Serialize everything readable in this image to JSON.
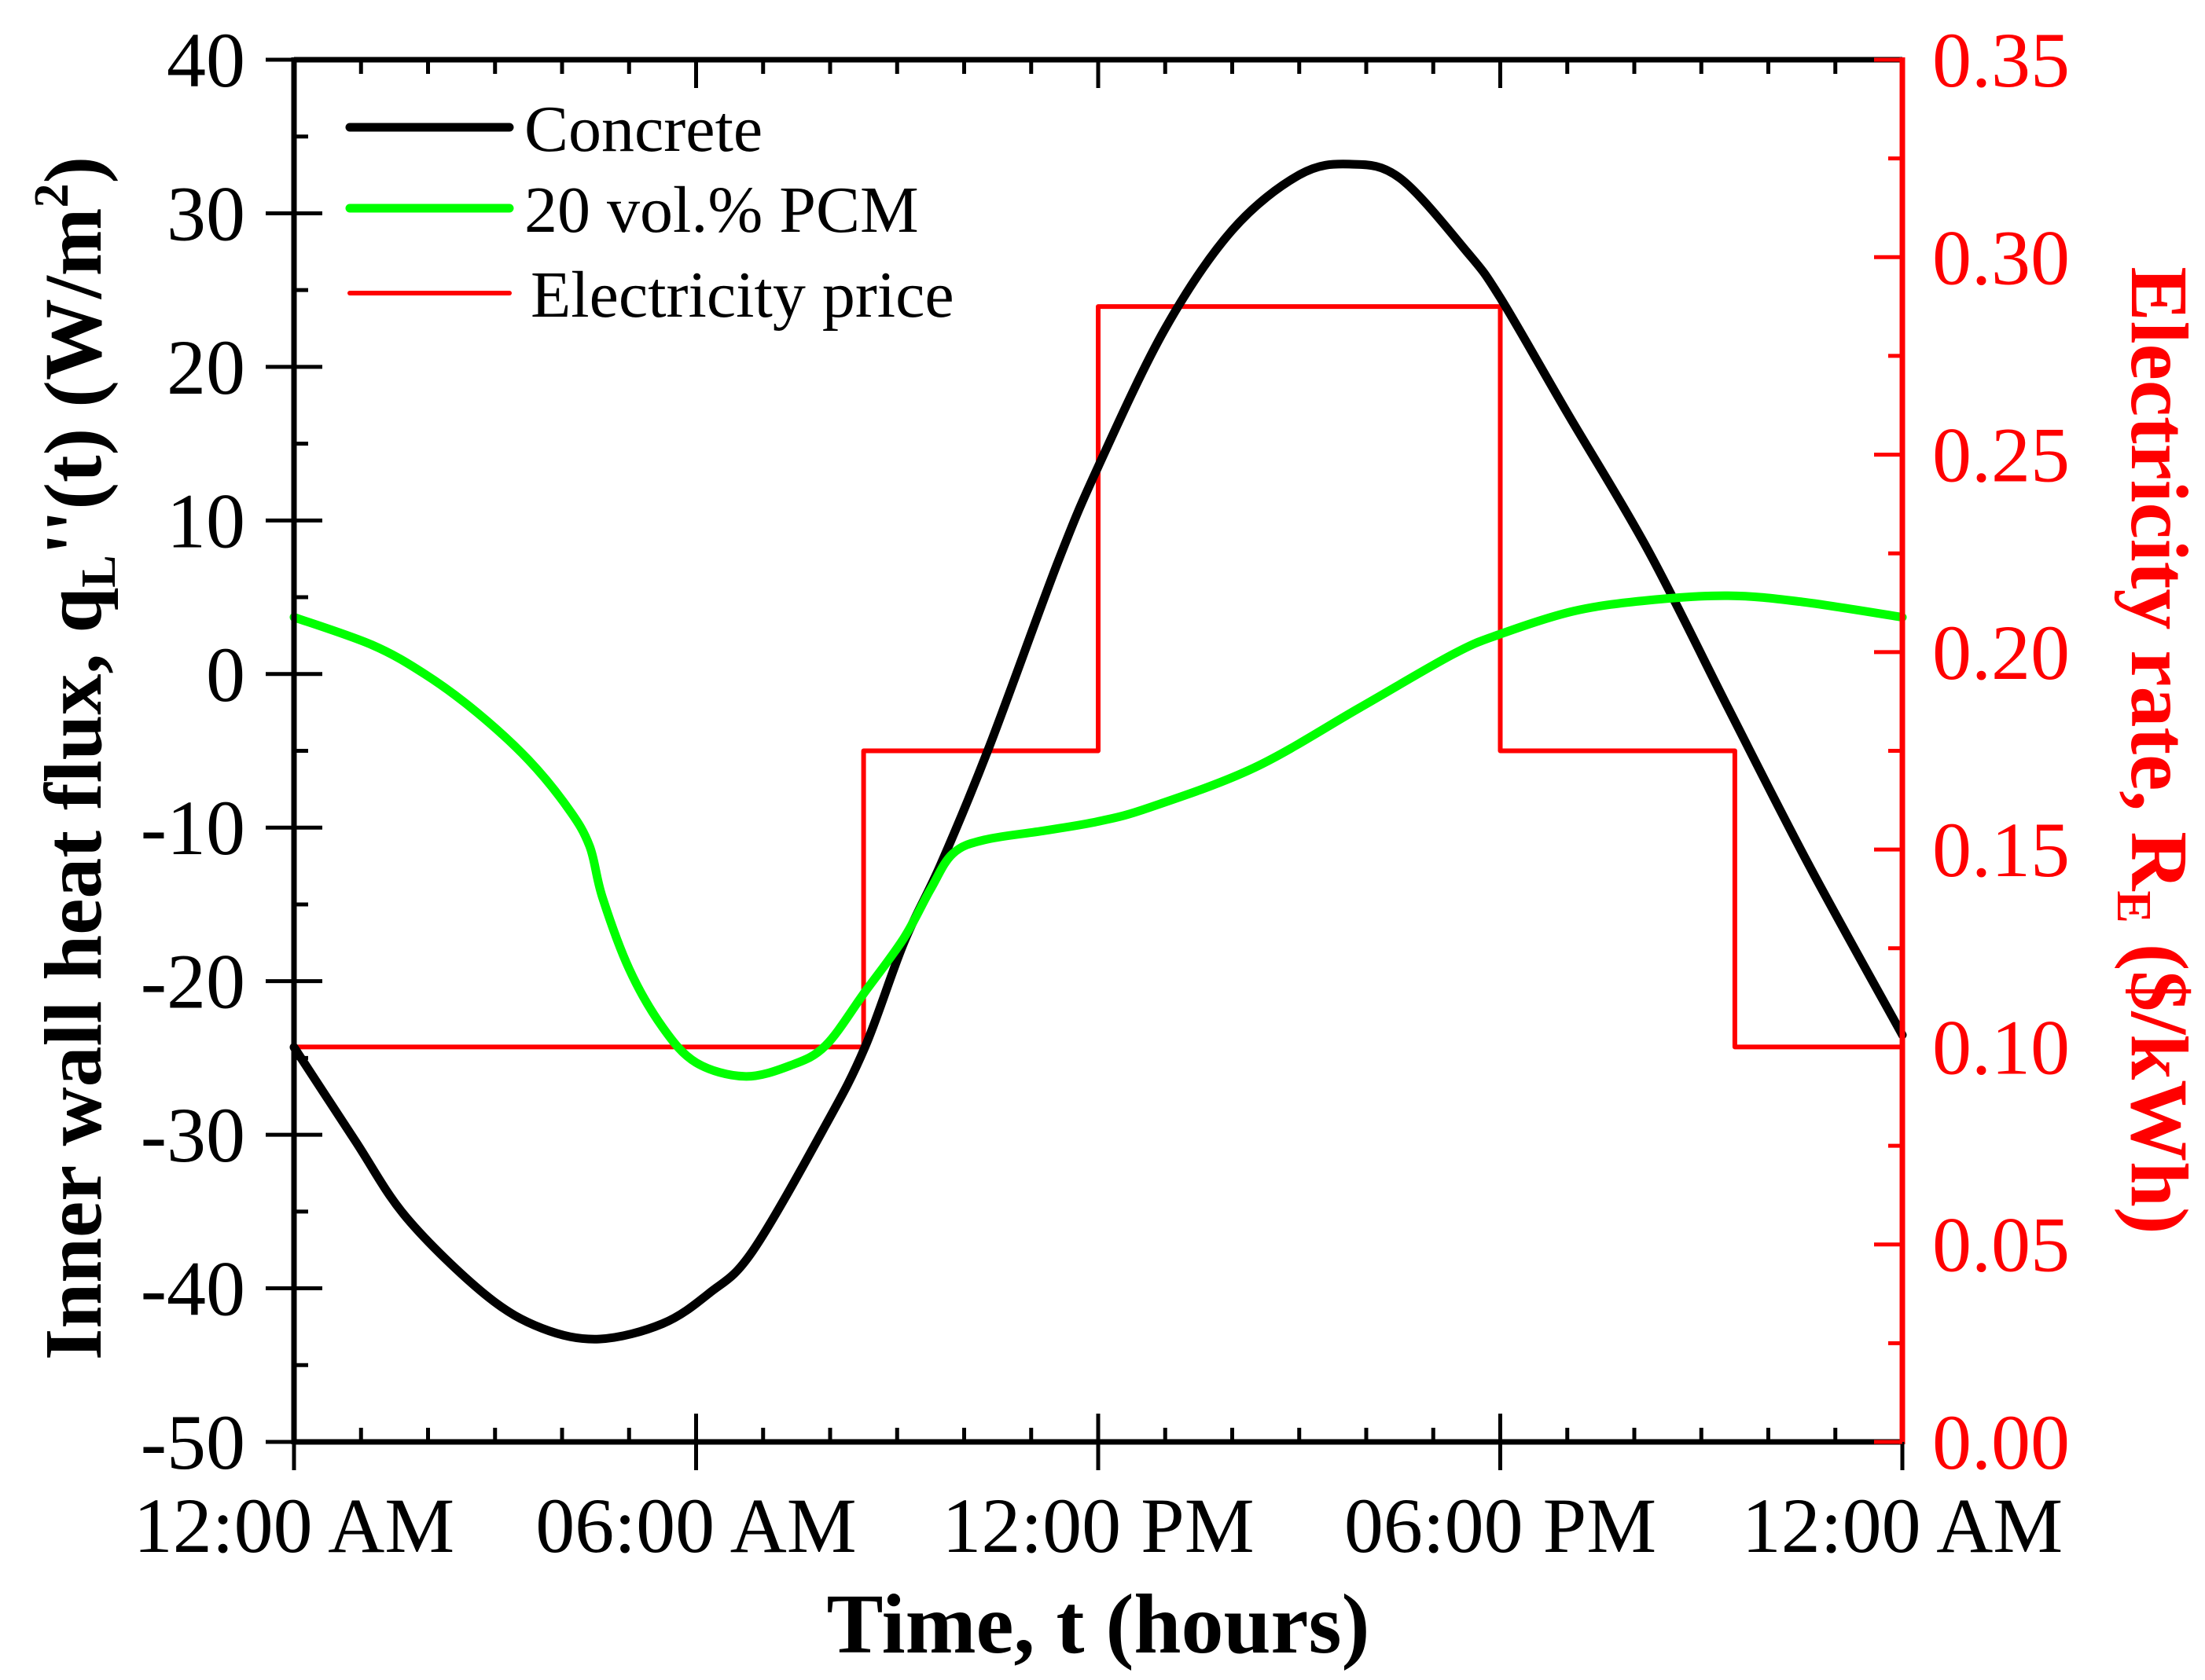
{
  "chart_data": {
    "type": "line",
    "title": "",
    "xlabel": "Time, t (hours)",
    "ylabel": {
      "main": "Inner wall heat flux, q",
      "sub": "L",
      "after_sub": "''(t) (W/m",
      "sup": "2",
      "close": ")"
    },
    "y2label": {
      "main": "Electricity rate, R",
      "sub": "E",
      "after_sub": " ($/kWh)"
    },
    "xlim": [
      0,
      24
    ],
    "ylim": [
      -50,
      40
    ],
    "y2lim": [
      0,
      0.35
    ],
    "x_ticks": [
      {
        "value": 0,
        "label": "12:00 AM"
      },
      {
        "value": 6,
        "label": "06:00 AM"
      },
      {
        "value": 12,
        "label": "12:00 PM"
      },
      {
        "value": 18,
        "label": "06:00 PM"
      },
      {
        "value": 24,
        "label": "12:00 AM"
      }
    ],
    "x_minor_step": 1,
    "y_ticks": [
      {
        "value": 40,
        "label": "40"
      },
      {
        "value": 30,
        "label": "30"
      },
      {
        "value": 20,
        "label": "20"
      },
      {
        "value": 10,
        "label": "10"
      },
      {
        "value": 0,
        "label": "0"
      },
      {
        "value": -10,
        "label": "-10"
      },
      {
        "value": -20,
        "label": "-20"
      },
      {
        "value": -30,
        "label": "-30"
      },
      {
        "value": -40,
        "label": "-40"
      },
      {
        "value": -50,
        "label": "-50"
      }
    ],
    "y_minor_step": 5,
    "y2_ticks": [
      {
        "value": 0.35,
        "label": "0.35"
      },
      {
        "value": 0.3,
        "label": "0.30"
      },
      {
        "value": 0.25,
        "label": "0.25"
      },
      {
        "value": 0.2,
        "label": "0.20"
      },
      {
        "value": 0.15,
        "label": "0.15"
      },
      {
        "value": 0.1,
        "label": "0.10"
      },
      {
        "value": 0.05,
        "label": "0.05"
      },
      {
        "value": 0.0,
        "label": "0.00"
      }
    ],
    "y2_minor_step": 0.025,
    "grid": false,
    "legend_position": "top-left",
    "series": [
      {
        "name": "Concrete",
        "axis": "left",
        "color": "#000000",
        "style": "thick",
        "x": [
          0,
          0.9,
          1.68,
          2.85,
          3.7,
          4.55,
          5.5,
          6.2,
          6.84,
          7.93,
          8.52,
          9.1,
          9.65,
          10.36,
          11.4,
          12.0,
          13.0,
          14.0,
          15.0,
          15.75,
          16.5,
          17.5,
          18.0,
          19.0,
          20.2,
          21.4,
          22.6,
          24
        ],
        "y": [
          -24.3,
          -30.3,
          -35.4,
          -40.4,
          -42.6,
          -43.3,
          -42.3,
          -40.3,
          -37.6,
          -29.4,
          -24.3,
          -17.5,
          -12.4,
          -4.9,
          7.3,
          13.5,
          22.5,
          28.9,
          32.5,
          33.2,
          32.3,
          27.5,
          24.5,
          17.0,
          8.1,
          -2.2,
          -12.4,
          -23.5
        ]
      },
      {
        "name": "20 vol.% PCM",
        "axis": "left",
        "color": "#00ff00",
        "style": "thick",
        "x": [
          0,
          1.16,
          1.95,
          2.73,
          3.5,
          4.1,
          4.41,
          4.6,
          5.0,
          5.5,
          6.0,
          6.72,
          7.4,
          7.93,
          8.52,
          9.1,
          9.5,
          9.83,
          10.3,
          11.2,
          12.0,
          12.76,
          14.33,
          15.9,
          17.3,
          18.0,
          19.1,
          20.2,
          21.4,
          22.5,
          24
        ],
        "y": [
          3.7,
          1.9,
          0.0,
          -2.5,
          -5.6,
          -8.8,
          -11.2,
          -14.5,
          -19.2,
          -23.0,
          -25.3,
          -26.2,
          -25.5,
          -24.2,
          -20.7,
          -17.2,
          -14.0,
          -11.7,
          -10.8,
          -10.2,
          -9.6,
          -8.7,
          -6.1,
          -2.2,
          1.3,
          2.6,
          4.1,
          4.8,
          5.1,
          4.7,
          3.7
        ]
      },
      {
        "name": "Electricity price",
        "axis": "right",
        "color": "#ff0000",
        "style": "step",
        "x": [
          0,
          8.5,
          8.5,
          12,
          12,
          18,
          18,
          21.5,
          21.5,
          24
        ],
        "y": [
          0.1,
          0.1,
          0.175,
          0.175,
          0.2875,
          0.2875,
          0.175,
          0.175,
          0.1,
          0.1
        ]
      }
    ]
  }
}
